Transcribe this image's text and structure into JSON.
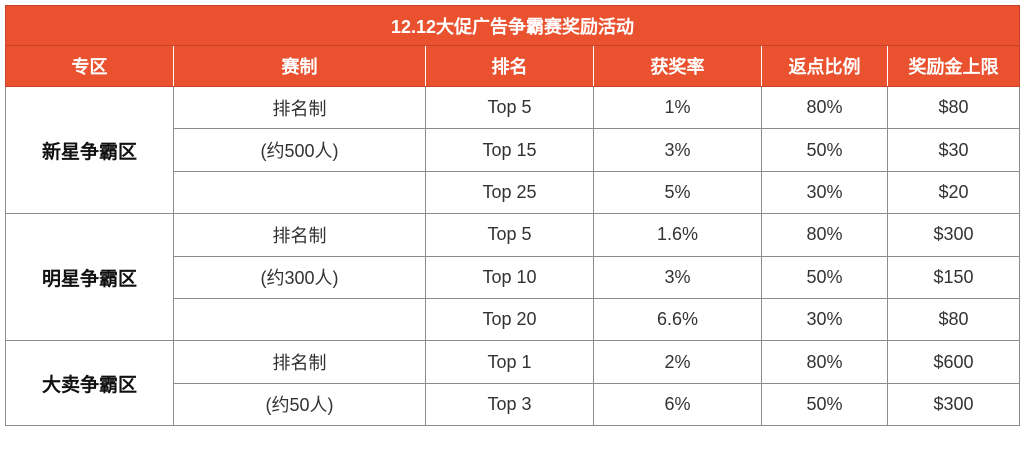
{
  "title": "12.12大促广告争霸赛奖励活动",
  "headers": [
    "专区",
    "赛制",
    "排名",
    "获奖率",
    "返点比例",
    "奖励金上限"
  ],
  "zones": [
    {
      "name": "新星争霸区",
      "format": [
        "排名制",
        "(约500人)",
        ""
      ],
      "rows": [
        {
          "rank": "Top 5",
          "rate": "1%",
          "rebate": "80%",
          "cap": "$80"
        },
        {
          "rank": "Top 15",
          "rate": "3%",
          "rebate": "50%",
          "cap": "$30"
        },
        {
          "rank": "Top 25",
          "rate": "5%",
          "rebate": "30%",
          "cap": "$20"
        }
      ]
    },
    {
      "name": "明星争霸区",
      "format": [
        "排名制",
        "(约300人)",
        ""
      ],
      "rows": [
        {
          "rank": "Top 5",
          "rate": "1.6%",
          "rebate": "80%",
          "cap": "$300"
        },
        {
          "rank": "Top 10",
          "rate": "3%",
          "rebate": "50%",
          "cap": "$150"
        },
        {
          "rank": "Top 20",
          "rate": "6.6%",
          "rebate": "30%",
          "cap": "$80"
        }
      ]
    },
    {
      "name": "大卖争霸区",
      "format": [
        "排名制",
        "(约50人)"
      ],
      "rows": [
        {
          "rank": "Top 1",
          "rate": "2%",
          "rebate": "80%",
          "cap": "$600"
        },
        {
          "rank": "Top 3",
          "rate": "6%",
          "rebate": "50%",
          "cap": "$300"
        }
      ]
    }
  ],
  "colors": {
    "header_bg": "#e9512f",
    "header_text": "#ffffff",
    "border": "#8c8c8c"
  }
}
